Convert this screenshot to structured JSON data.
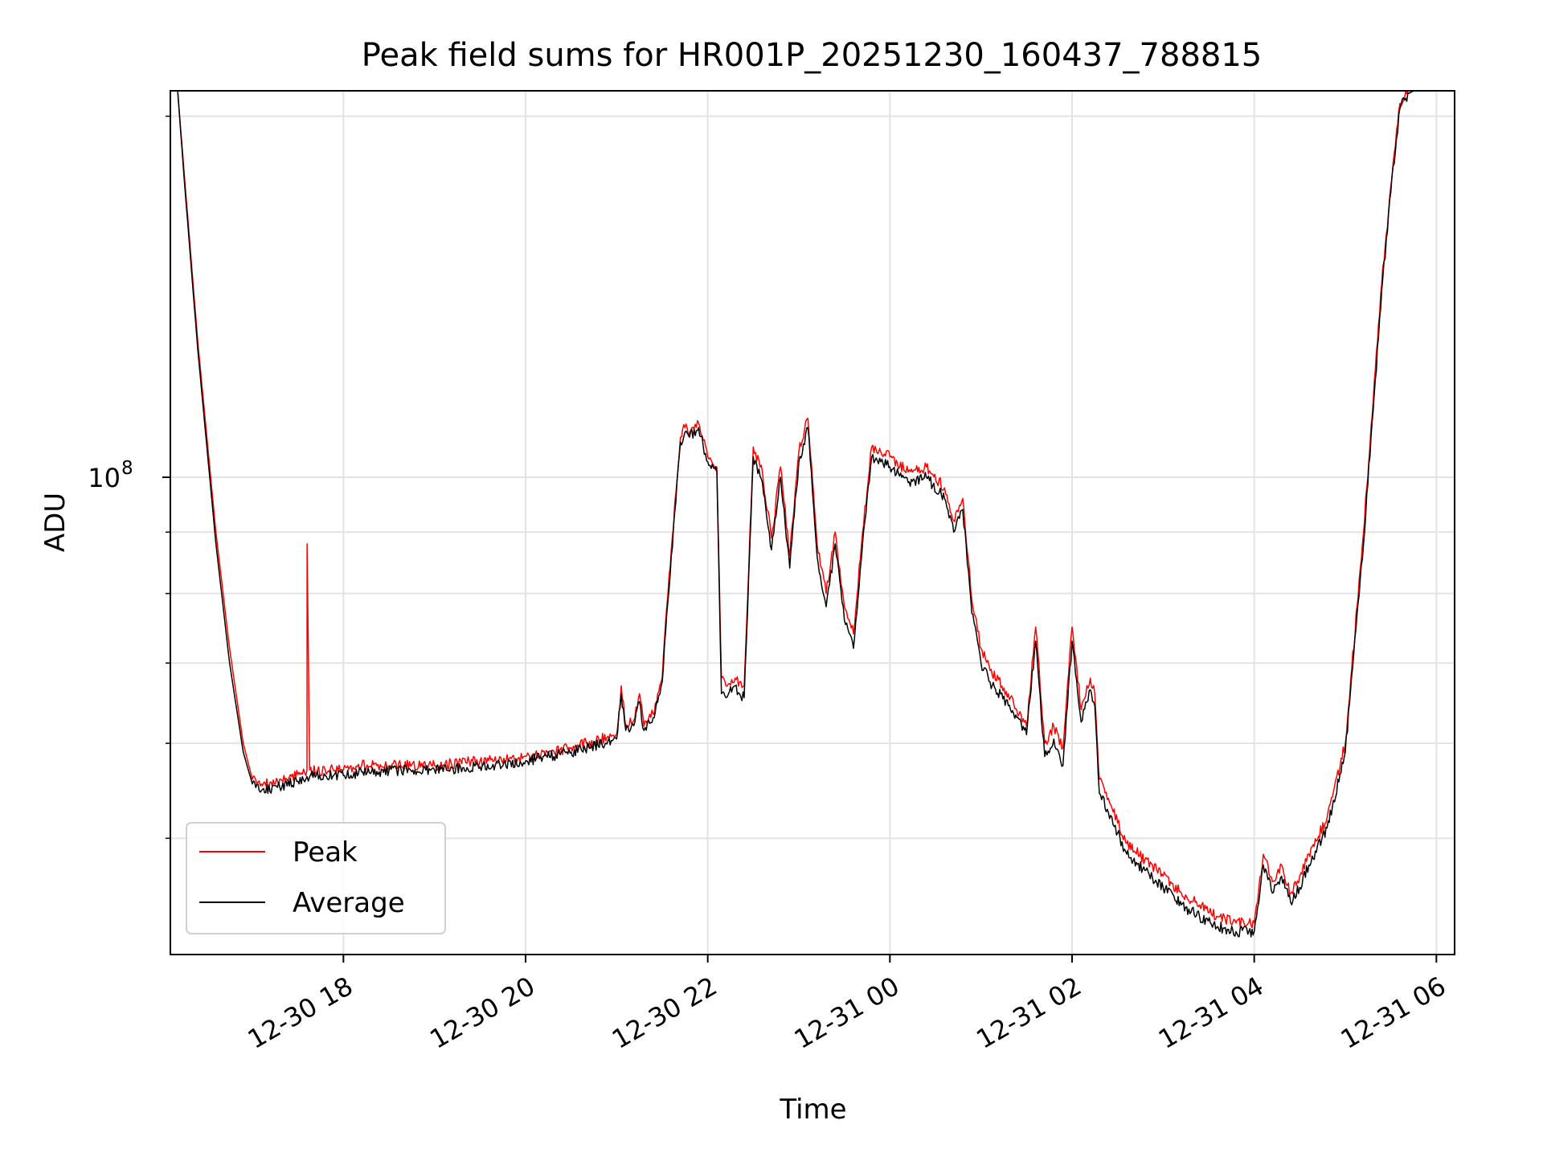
{
  "chart_data": {
    "type": "line",
    "title": "Peak field sums for HR001P_20251230_160437_788815",
    "xlabel": "Time",
    "ylabel": "ADU",
    "yscale": "log",
    "ylim": [
      40000000,
      210000000
    ],
    "xlim_hours": [
      16.1,
      30.2
    ],
    "x_unit": "hours since 2025-12-30 00:00",
    "grid": true,
    "legend_location": "lower left",
    "x_ticks": [
      {
        "value": 18,
        "label": "12-30 18"
      },
      {
        "value": 20,
        "label": "12-30 20"
      },
      {
        "value": 22,
        "label": "12-30 22"
      },
      {
        "value": 24,
        "label": "12-31 00"
      },
      {
        "value": 26,
        "label": "12-31 02"
      },
      {
        "value": 28,
        "label": "12-31 04"
      },
      {
        "value": 30,
        "label": "12-31 06"
      }
    ],
    "y_major_ticks": [
      {
        "value": 100000000,
        "label": "10",
        "exponent": "8"
      }
    ],
    "y_minor_ticks": [
      50000000,
      60000000,
      70000000,
      80000000,
      90000000,
      200000000
    ],
    "series": [
      {
        "name": "Peak",
        "color": "#ff0000",
        "x": [
          16.18,
          16.25,
          16.4,
          16.6,
          16.75,
          16.9,
          17.0,
          17.1,
          17.3,
          17.5,
          17.6,
          17.601,
          17.63,
          17.8,
          18.0,
          18.2,
          18.5,
          19.0,
          19.5,
          20.0,
          20.5,
          21.0,
          21.05,
          21.1,
          21.2,
          21.25,
          21.3,
          21.4,
          21.5,
          21.55,
          21.6,
          21.7,
          21.75,
          21.8,
          21.9,
          22.0,
          22.1,
          22.15,
          22.2,
          22.3,
          22.35,
          22.4,
          22.5,
          22.6,
          22.7,
          22.8,
          22.9,
          23.0,
          23.1,
          23.2,
          23.3,
          23.4,
          23.5,
          23.6,
          23.7,
          23.8,
          23.9,
          24.0,
          24.2,
          24.4,
          24.6,
          24.7,
          24.8,
          24.9,
          25.0,
          25.1,
          25.3,
          25.5,
          25.6,
          25.7,
          25.8,
          25.9,
          26.0,
          26.1,
          26.2,
          26.25,
          26.3,
          26.4,
          26.5,
          26.6,
          26.8,
          27.0,
          27.2,
          27.4,
          27.6,
          27.8,
          28.0,
          28.1,
          28.2,
          28.3,
          28.4,
          28.5,
          28.6,
          28.8,
          29.0,
          29.2,
          29.4,
          29.5,
          29.6,
          29.7,
          29.8,
          29.9,
          30.0,
          30.05
        ],
        "y": [
          210000000,
          180000000,
          130000000,
          90000000,
          72000000,
          60000000,
          56000000,
          55500000,
          56000000,
          56500000,
          57000000,
          88000000,
          57000000,
          57000000,
          57000000,
          57500000,
          57500000,
          57500000,
          58000000,
          58500000,
          59500000,
          61000000,
          67000000,
          62000000,
          63000000,
          66000000,
          62000000,
          63500000,
          68000000,
          78000000,
          87000000,
          108000000,
          110000000,
          109000000,
          111000000,
          104000000,
          102000000,
          68000000,
          67000000,
          68000000,
          67500000,
          67000000,
          106000000,
          101000000,
          89000000,
          102000000,
          86000000,
          105000000,
          112000000,
          88000000,
          80000000,
          90000000,
          78000000,
          74000000,
          90000000,
          106000000,
          105000000,
          104000000,
          101000000,
          102000000,
          98000000,
          92000000,
          96000000,
          79000000,
          72000000,
          69000000,
          66000000,
          62000000,
          75000000,
          60000000,
          62000000,
          59500000,
          75000000,
          64000000,
          68000000,
          66000000,
          56000000,
          54000000,
          51500000,
          49500000,
          48000000,
          46500000,
          45000000,
          44000000,
          43000000,
          42500000,
          42500000,
          48500000,
          46000000,
          47500000,
          45000000,
          46500000,
          48500000,
          52000000,
          60000000,
          90000000,
          145000000,
          175000000,
          205000000,
          210000000,
          212000000,
          212000000,
          212000000,
          212000000
        ]
      },
      {
        "name": "Average",
        "color": "#000000",
        "x": [
          16.18,
          16.25,
          16.4,
          16.6,
          16.75,
          16.9,
          17.0,
          17.1,
          17.3,
          17.5,
          17.6,
          17.63,
          17.8,
          18.0,
          18.2,
          18.5,
          19.0,
          19.5,
          20.0,
          20.5,
          21.0,
          21.05,
          21.1,
          21.2,
          21.25,
          21.3,
          21.4,
          21.5,
          21.55,
          21.6,
          21.7,
          21.75,
          21.8,
          21.9,
          22.0,
          22.1,
          22.15,
          22.2,
          22.3,
          22.35,
          22.4,
          22.5,
          22.6,
          22.7,
          22.8,
          22.9,
          23.0,
          23.1,
          23.2,
          23.3,
          23.4,
          23.5,
          23.6,
          23.7,
          23.8,
          23.9,
          24.0,
          24.2,
          24.4,
          24.6,
          24.7,
          24.8,
          24.9,
          25.0,
          25.1,
          25.3,
          25.5,
          25.6,
          25.7,
          25.8,
          25.9,
          26.0,
          26.1,
          26.2,
          26.25,
          26.3,
          26.4,
          26.5,
          26.6,
          26.8,
          27.0,
          27.2,
          27.4,
          27.6,
          27.8,
          28.0,
          28.1,
          28.2,
          28.3,
          28.4,
          28.5,
          28.6,
          28.8,
          29.0,
          29.2,
          29.4,
          29.5,
          29.6,
          29.7,
          29.8,
          29.9,
          30.0,
          30.05
        ],
        "y": [
          210000000,
          178000000,
          128000000,
          88000000,
          70000000,
          59000000,
          55500000,
          54800000,
          55200000,
          55800000,
          56300000,
          56300000,
          56400000,
          56400000,
          56800000,
          56900000,
          57000000,
          57400000,
          58000000,
          59000000,
          60500000,
          66000000,
          61500000,
          62500000,
          65000000,
          61500000,
          63000000,
          67500000,
          77000000,
          86000000,
          107000000,
          109000000,
          108000000,
          110000000,
          103000000,
          101000000,
          66000000,
          65500000,
          67000000,
          66000000,
          65500000,
          104000000,
          99000000,
          87000000,
          100000000,
          84000000,
          103000000,
          110000000,
          86000000,
          78000000,
          88000000,
          76000000,
          72000000,
          88000000,
          104000000,
          103000000,
          102000000,
          99000000,
          100000000,
          96000000,
          90000000,
          94000000,
          77000000,
          70000000,
          67500000,
          64500000,
          61000000,
          73000000,
          58500000,
          60500000,
          57500000,
          73000000,
          62500000,
          66500000,
          64500000,
          54500000,
          52500000,
          50500000,
          48500000,
          47000000,
          45500000,
          44000000,
          43000000,
          42200000,
          41800000,
          41800000,
          47500000,
          45000000,
          46500000,
          44200000,
          45500000,
          47500000,
          51000000,
          59000000,
          88000000,
          143000000,
          173000000,
          203000000,
          209000000,
          211000000,
          211000000,
          211000000,
          211000000
        ]
      }
    ]
  }
}
